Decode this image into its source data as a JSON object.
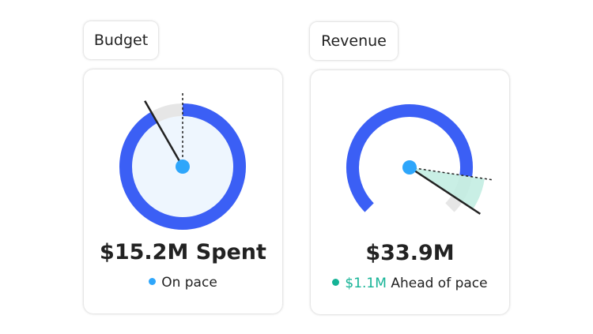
{
  "colors": {
    "progress": "#3b5ff5",
    "track": "#e6e6e6",
    "center_dot": "#2ea6fb",
    "budget_fill": "#eef6fe",
    "ahead": "#15b396",
    "ahead_wedge": "#bfece0"
  },
  "budget": {
    "tab_label": "Budget",
    "value_label": "$15.2M Spent",
    "status_label": "On pace",
    "status_dot_color": "#2ea6fb",
    "gauge": {
      "shape": "full-circle",
      "progress_fraction": 0.917,
      "pace_fraction": 1.0
    }
  },
  "revenue": {
    "tab_label": "Revenue",
    "value_label": "$33.9M",
    "status_amount": "$1.1M",
    "status_label": "Ahead of pace",
    "status_dot_color": "#15b396",
    "gauge": {
      "shape": "270-degree-arc",
      "progress_fraction": 0.865,
      "pace_fraction": 0.865,
      "needle_fraction": 0.957
    }
  }
}
